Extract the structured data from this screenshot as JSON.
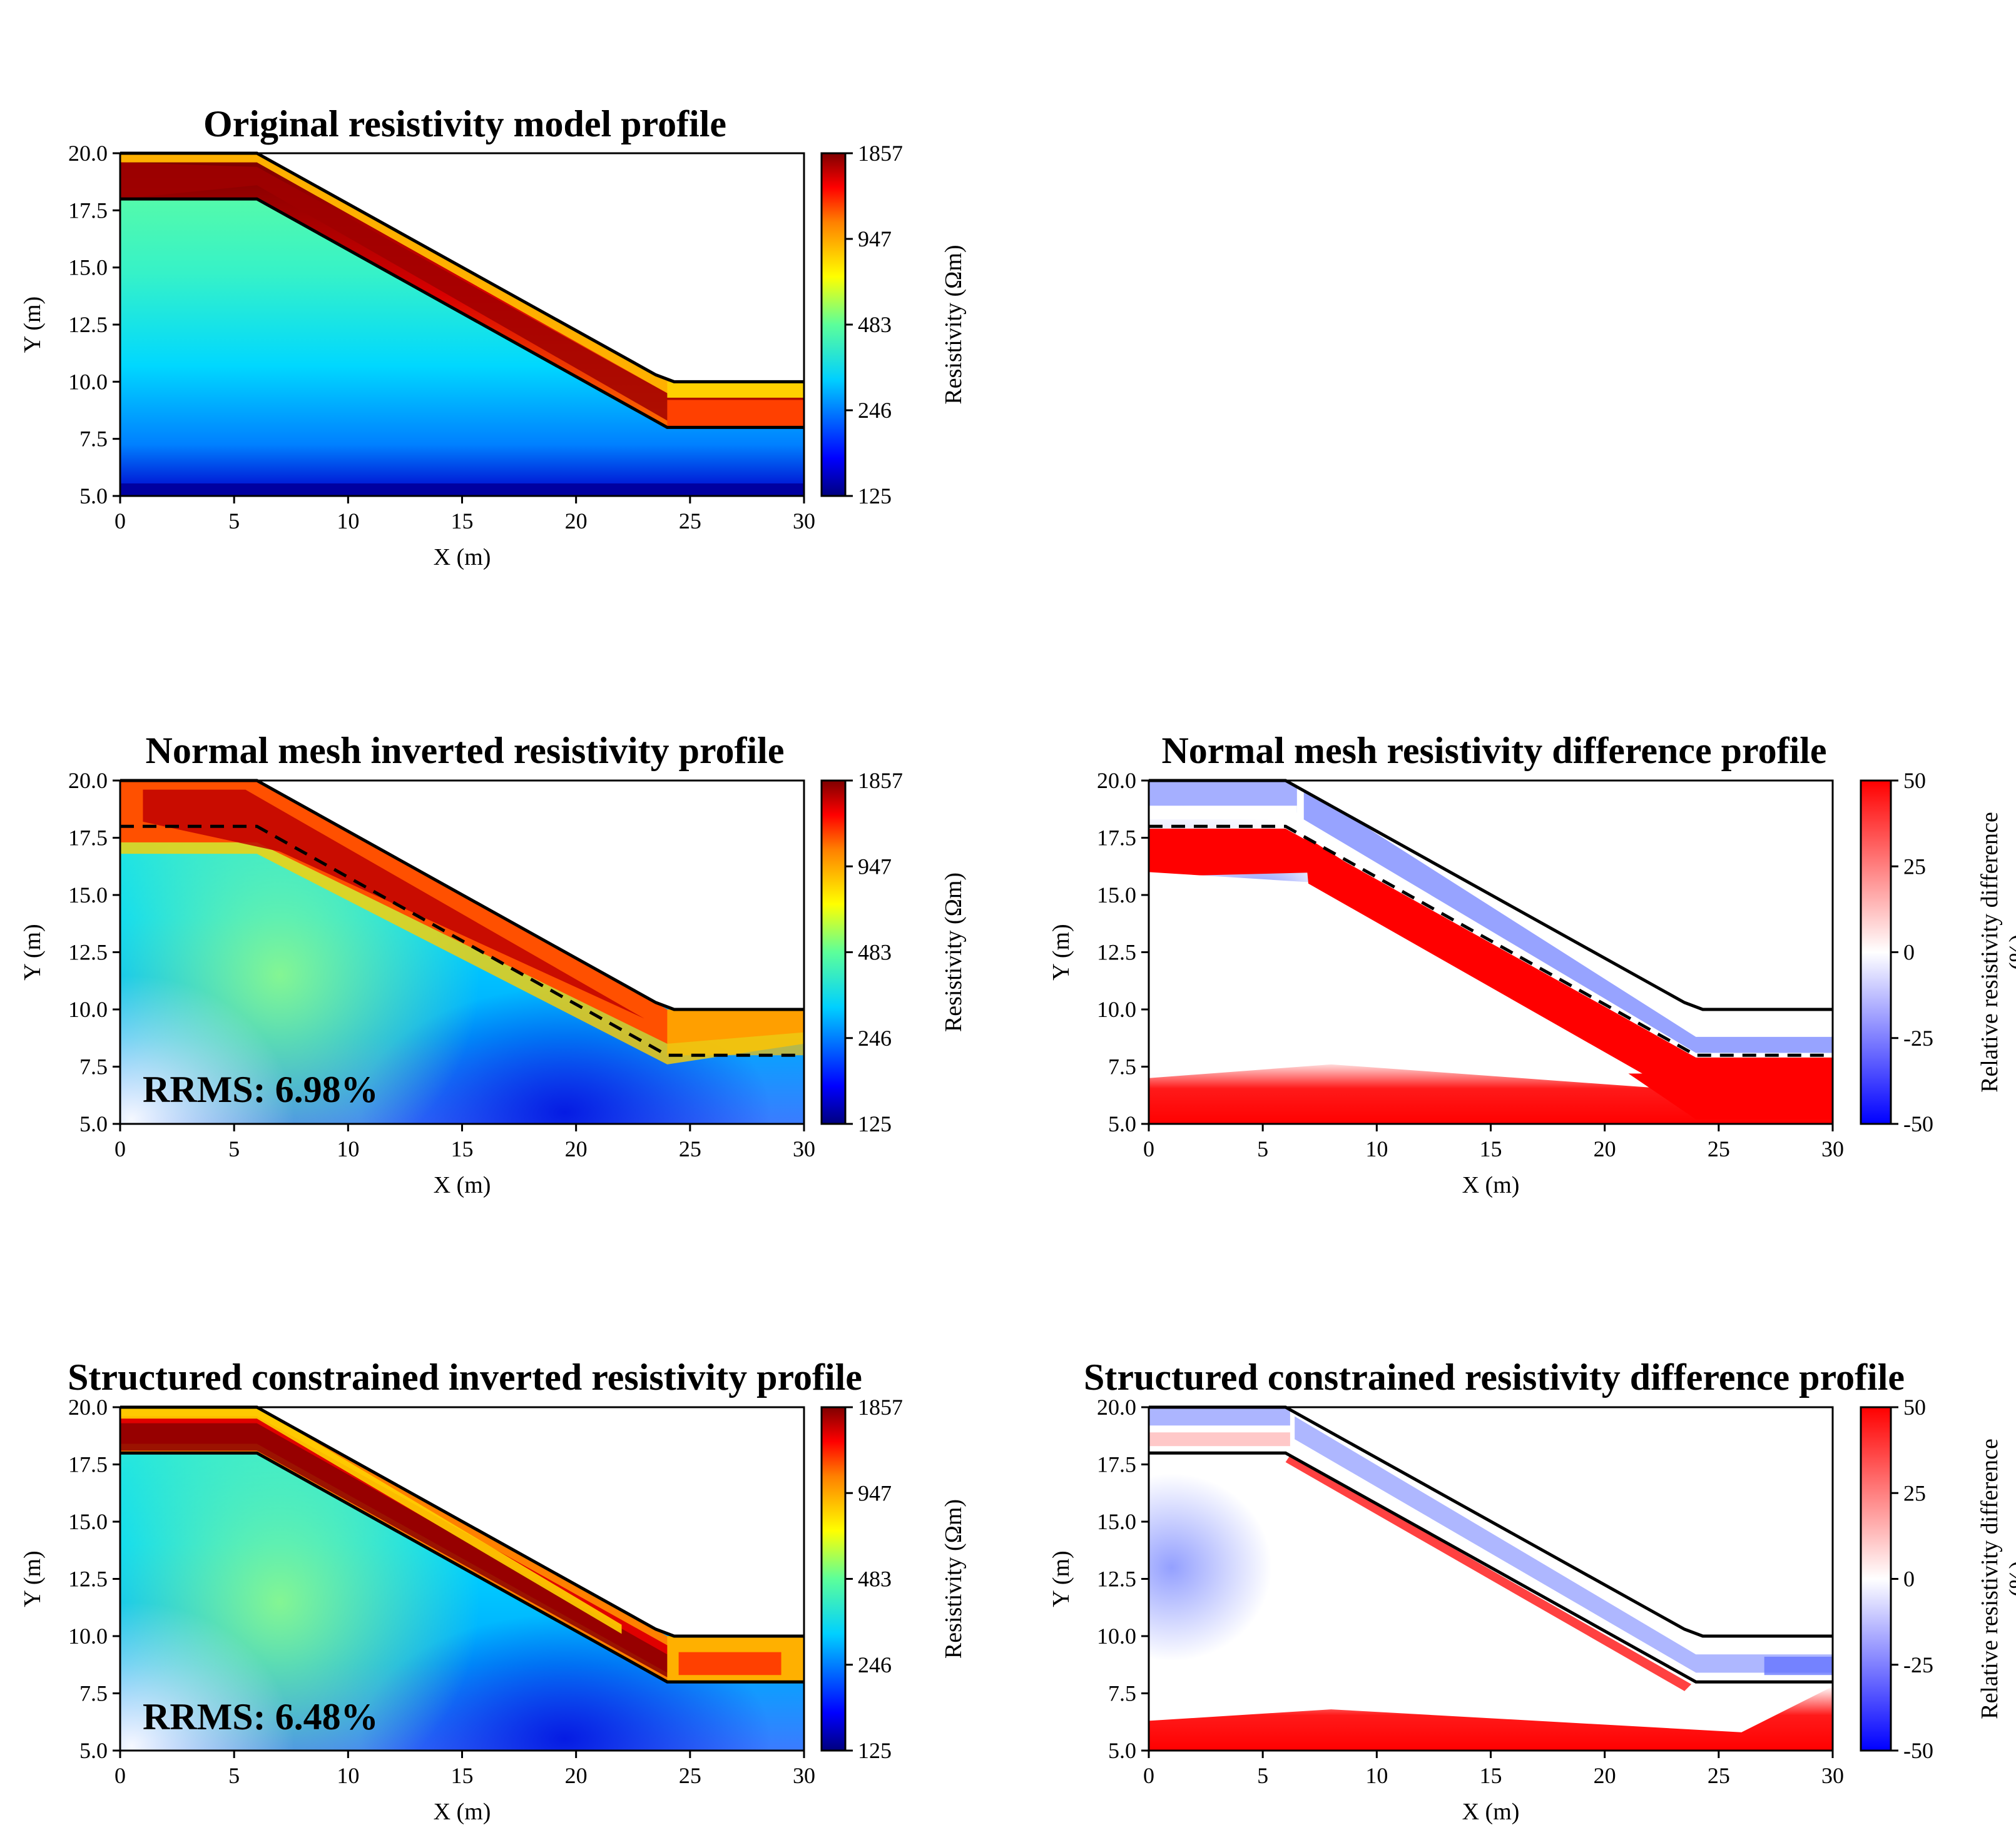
{
  "colors": {
    "jet": [
      "#00007f",
      "#0000ff",
      "#007fff",
      "#00ffff",
      "#7fff7f",
      "#ffff00",
      "#ff7f00",
      "#ff0000",
      "#7f0000"
    ],
    "bwr": [
      "#0000ff",
      "#ffffff",
      "#ff0000"
    ],
    "boundary": "#000000"
  },
  "chart_data": [
    {
      "id": "original",
      "type": "heatmap",
      "title": "Original resistivity model profile",
      "xlabel": "X (m)",
      "ylabel": "Y (m)",
      "xlim": [
        0,
        30
      ],
      "ylim": [
        5,
        20
      ],
      "xticks": [
        "0",
        "5",
        "10",
        "15",
        "20",
        "25",
        "30"
      ],
      "yticks": [
        "5.0",
        "7.5",
        "10.0",
        "12.5",
        "15.0",
        "17.5",
        "20.0"
      ],
      "colorbar": {
        "label": "Resistivity (Ωm)",
        "ticks": [
          "125",
          "246",
          "483",
          "947",
          "1857"
        ],
        "colormap": "jet"
      },
      "surface": {
        "x": [
          0,
          6,
          23.5,
          24.3,
          30
        ],
        "y": [
          20,
          20,
          10.3,
          10,
          10
        ]
      },
      "interface": {
        "x": [
          0,
          6,
          24,
          30
        ],
        "y": [
          18,
          18,
          8,
          8
        ],
        "style": "solid"
      },
      "layers": {
        "top_value": 1857,
        "subsurface_range": [
          125,
          483
        ]
      },
      "annotation": ""
    },
    {
      "id": "normal",
      "type": "heatmap",
      "title": "Normal mesh inverted resistivity profile",
      "xlabel": "X (m)",
      "ylabel": "Y (m)",
      "xlim": [
        0,
        30
      ],
      "ylim": [
        5,
        20
      ],
      "xticks": [
        "0",
        "5",
        "10",
        "15",
        "20",
        "25",
        "30"
      ],
      "yticks": [
        "5.0",
        "7.5",
        "10.0",
        "12.5",
        "15.0",
        "17.5",
        "20.0"
      ],
      "colorbar": {
        "label": "Resistivity (Ωm)",
        "ticks": [
          "125",
          "246",
          "483",
          "947",
          "1857"
        ],
        "colormap": "jet"
      },
      "surface": {
        "x": [
          0,
          6,
          23.5,
          24.3,
          30
        ],
        "y": [
          20,
          20,
          10.3,
          10,
          10
        ]
      },
      "interface": {
        "x": [
          0,
          6,
          24,
          30
        ],
        "y": [
          18,
          18,
          8,
          8
        ],
        "style": "dashed"
      },
      "annotation": "RRMS: 6.98%"
    },
    {
      "id": "normal-diff",
      "type": "heatmap",
      "title": "Normal mesh resistivity difference profile",
      "xlabel": "X (m)",
      "ylabel": "Y (m)",
      "xlim": [
        0,
        30
      ],
      "ylim": [
        5,
        20
      ],
      "xticks": [
        "0",
        "5",
        "10",
        "15",
        "20",
        "25",
        "30"
      ],
      "yticks": [
        "5.0",
        "7.5",
        "10.0",
        "12.5",
        "15.0",
        "17.5",
        "20.0"
      ],
      "colorbar": {
        "label": "Relative resistivity difference",
        "label2": "(%)",
        "ticks": [
          "-50",
          "-25",
          "0",
          "25",
          "50"
        ],
        "colormap": "bwr"
      },
      "surface": {
        "x": [
          0,
          6,
          23.5,
          24.3,
          30
        ],
        "y": [
          20,
          20,
          10.3,
          10,
          10
        ]
      },
      "interface": {
        "x": [
          0,
          6,
          24,
          30
        ],
        "y": [
          18,
          18,
          8,
          8
        ],
        "style": "dashed"
      },
      "annotation": ""
    },
    {
      "id": "structured",
      "type": "heatmap",
      "title": "Structured constrained inverted resistivity profile",
      "xlabel": "X (m)",
      "ylabel": "Y (m)",
      "xlim": [
        0,
        30
      ],
      "ylim": [
        5,
        20
      ],
      "xticks": [
        "0",
        "5",
        "10",
        "15",
        "20",
        "25",
        "30"
      ],
      "yticks": [
        "5.0",
        "7.5",
        "10.0",
        "12.5",
        "15.0",
        "17.5",
        "20.0"
      ],
      "colorbar": {
        "label": "Resistivity (Ωm)",
        "ticks": [
          "125",
          "246",
          "483",
          "947",
          "1857"
        ],
        "colormap": "jet"
      },
      "surface": {
        "x": [
          0,
          6,
          23.5,
          24.3,
          30
        ],
        "y": [
          20,
          20,
          10.3,
          10,
          10
        ]
      },
      "interface": {
        "x": [
          0,
          6,
          24,
          30
        ],
        "y": [
          18,
          18,
          8,
          8
        ],
        "style": "solid"
      },
      "annotation": "RRMS: 6.48%"
    },
    {
      "id": "structured-diff",
      "type": "heatmap",
      "title": "Structured constrained resistivity difference profile",
      "xlabel": "X (m)",
      "ylabel": "Y (m)",
      "xlim": [
        0,
        30
      ],
      "ylim": [
        5,
        20
      ],
      "xticks": [
        "0",
        "5",
        "10",
        "15",
        "20",
        "25",
        "30"
      ],
      "yticks": [
        "5.0",
        "7.5",
        "10.0",
        "12.5",
        "15.0",
        "17.5",
        "20.0"
      ],
      "colorbar": {
        "label": "Relative resistivity difference",
        "label2": "(%)",
        "ticks": [
          "-50",
          "-25",
          "0",
          "25",
          "50"
        ],
        "colormap": "bwr"
      },
      "surface": {
        "x": [
          0,
          6,
          23.5,
          24.3,
          30
        ],
        "y": [
          20,
          20,
          10.3,
          10,
          10
        ]
      },
      "interface": {
        "x": [
          0,
          6,
          24,
          30
        ],
        "y": [
          18,
          18,
          8,
          8
        ],
        "style": "solid"
      },
      "annotation": ""
    }
  ]
}
